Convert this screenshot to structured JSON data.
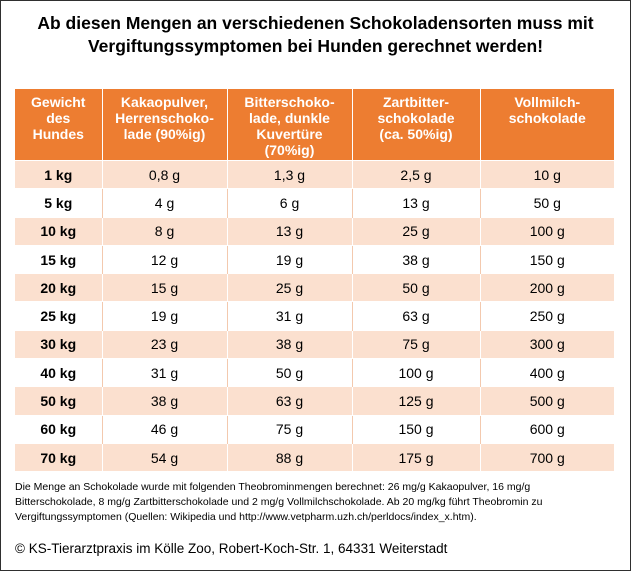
{
  "title": {
    "line1": "Ab diesen Mengen an verschiedenen Schokoladensorten muss mit",
    "line2": "Vergiftungssymptomen bei Hunden gerechnet werden!"
  },
  "colors": {
    "header": "#ed7d31",
    "band": "#fbe0cf"
  },
  "table": {
    "headers": [
      [
        "Gewicht",
        "des",
        "Hundes"
      ],
      [
        "Kakaopulver,",
        "Herrenschoko-",
        "lade (90%ig)"
      ],
      [
        "Bitterschoko-",
        "lade, dunkle",
        "Kuvertüre",
        "(70%ig)"
      ],
      [
        "Zartbitter-",
        "schokolade",
        "(ca. 50%ig)"
      ],
      [
        "Vollmilch-",
        "schokolade"
      ]
    ],
    "rows": [
      [
        "1 kg",
        "0,8 g",
        "1,3 g",
        "2,5 g",
        "10 g"
      ],
      [
        "5 kg",
        "4 g",
        "6 g",
        "13 g",
        "50 g"
      ],
      [
        "10 kg",
        "8 g",
        "13 g",
        "25 g",
        "100 g"
      ],
      [
        "15 kg",
        "12 g",
        "19 g",
        "38 g",
        "150 g"
      ],
      [
        "20 kg",
        "15 g",
        "25 g",
        "50 g",
        "200 g"
      ],
      [
        "25 kg",
        "19 g",
        "31 g",
        "63 g",
        "250 g"
      ],
      [
        "30 kg",
        "23 g",
        "38 g",
        "75 g",
        "300 g"
      ],
      [
        "40 kg",
        "31 g",
        "50 g",
        "100 g",
        "400 g"
      ],
      [
        "50 kg",
        "38 g",
        "63 g",
        "125 g",
        "500 g"
      ],
      [
        "60 kg",
        "46 g",
        "75 g",
        "150 g",
        "600 g"
      ],
      [
        "70 kg",
        "54 g",
        "88 g",
        "175 g",
        "700 g"
      ]
    ]
  },
  "note": {
    "line1": "Die Menge an Schokolade wurde mit folgenden Theobrominmengen berechnet: 26 mg/g Kakaopulver, 16 mg/g",
    "line2": "Bitterschokolade, 8 mg/g Zartbitterschokolade und 2 mg/g Vollmilchschokolade. Ab 20 mg/kg führt Theobromin zu",
    "line3": "Vergiftungssymptomen (Quellen: Wikipedia und http://www.vetpharm.uzh.ch/perldocs/index_x.htm)."
  },
  "copyright": "© KS-Tierarztpraxis im Kölle Zoo, Robert-Koch-Str. 1, 64331 Weiterstadt"
}
